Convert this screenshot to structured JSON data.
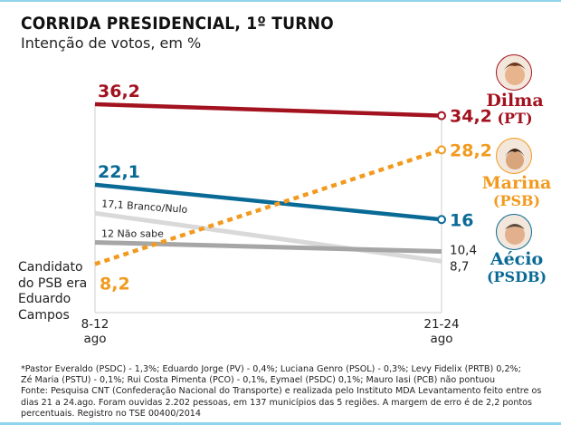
{
  "header": {
    "title": "CORRIDA PRESIDENCIAL, 1º TURNO",
    "subtitle": "Intenção de votos, em %"
  },
  "chart_data": {
    "type": "line",
    "title": "CORRIDA PRESIDENCIAL, 1º TURNO",
    "subtitle": "Intenção de votos, em %",
    "x": [
      "8-12 ago",
      "21-24 ago"
    ],
    "x_labels": [
      {
        "line1": "8-12",
        "line2": "ago"
      },
      {
        "line1": "21-24",
        "line2": "ago"
      }
    ],
    "xlabel": "",
    "ylabel": "",
    "ylim": [
      0,
      40
    ],
    "grid": false,
    "series": [
      {
        "name": "Dilma (PT)",
        "candidate": "Dilma",
        "party": "(PT)",
        "values": [
          36.2,
          34.2
        ],
        "labels": [
          "36,2",
          "34,2"
        ],
        "color": "#a3121f",
        "style": "solid"
      },
      {
        "name": "Marina (PSB)",
        "candidate": "Marina",
        "party": "(PSB)",
        "values": [
          8.2,
          28.2
        ],
        "labels": [
          "8,2",
          "28,2"
        ],
        "color": "#f29a1f",
        "style": "dotted"
      },
      {
        "name": "Aécio (PSDB)",
        "candidate": "Aécio",
        "party": "(PSDB)",
        "values": [
          22.1,
          16
        ],
        "labels": [
          "22,1",
          "16"
        ],
        "color": "#0a6a96",
        "style": "solid"
      },
      {
        "name": "Branco/Nulo",
        "values": [
          17.1,
          8.7
        ],
        "labels": [
          "17,1 Branco/Nulo",
          "8,7"
        ],
        "color": "#d9d9d9",
        "style": "solid"
      },
      {
        "name": "Não sabe",
        "values": [
          12,
          10.4
        ],
        "labels": [
          "12 Não sabe",
          "10,4"
        ],
        "color": "#a6a6a6",
        "style": "solid"
      }
    ],
    "annotations": [
      "Candidato do PSB era Eduardo Campos"
    ],
    "legend": "right"
  },
  "note": "Candidato do PSB era Eduardo Campos",
  "footer": {
    "lines": [
      "*Pastor Everaldo (PSDC) - 1,3%; Eduardo Jorge (PV) - 0,4%; Luciana Genro (PSOL) - 0,3%; Levy Fidelix (PRTB) 0,2%;",
      "Zé Maria (PSTU) - 0,1%; Rui Costa Pimenta (PCO) - 0,1%, Eymael (PSDC) 0,1%; Mauro Iasi (PCB) não pontuou",
      "Fonte: Pesquisa CNT (Confederação Nacional do Transporte) e realizada pelo Instituto MDA     Levantamento feito entre os",
      "dias 21 a 24.ago. Foram ouvidas 2.202 pessoas, em 137 municípios das 5 regiões. A margem de erro é de 2,2 pontos",
      "percentuais. Registro no TSE 00400/2014"
    ]
  }
}
